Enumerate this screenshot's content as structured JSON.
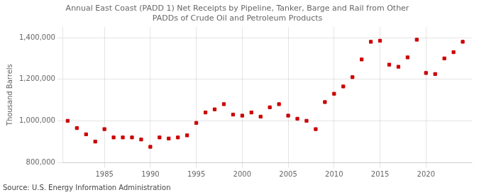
{
  "chart_data": {
    "type": "scatter",
    "title": "Annual East Coast (PADD 1) Net Receipts by Pipeline, Tanker, Barge and Rail from Other\nPADDs of Crude Oil and Petroleum Products",
    "ylabel": "Thousand Barrels",
    "source": "Source: U.S. Energy Information Administration",
    "x": [
      1981,
      1982,
      1983,
      1984,
      1985,
      1986,
      1987,
      1988,
      1989,
      1990,
      1991,
      1992,
      1993,
      1994,
      1995,
      1996,
      1997,
      1998,
      1999,
      2000,
      2001,
      2002,
      2003,
      2004,
      2005,
      2006,
      2007,
      2008,
      2009,
      2010,
      2011,
      2012,
      2013,
      2014,
      2015,
      2016,
      2017,
      2018,
      2019,
      2020,
      2021,
      2022,
      2023,
      2024
    ],
    "values": [
      1000000,
      965000,
      935000,
      900000,
      960000,
      920000,
      920000,
      920000,
      910000,
      875000,
      920000,
      915000,
      920000,
      930000,
      990000,
      1040000,
      1055000,
      1080000,
      1030000,
      1025000,
      1040000,
      1020000,
      1065000,
      1080000,
      1025000,
      1010000,
      1000000,
      960000,
      1090000,
      1130000,
      1165000,
      1210000,
      1295000,
      1380000,
      1385000,
      1270000,
      1260000,
      1305000,
      1390000,
      1230000,
      1225000,
      1300000,
      1330000,
      1380000
    ],
    "color": "#cc0000",
    "marker": "square",
    "xlim": [
      1980.5,
      2025
    ],
    "xticks": [
      1985,
      1990,
      1995,
      2000,
      2005,
      2010,
      2015,
      2020
    ],
    "ylim": [
      800000,
      1450000
    ],
    "yticks": [
      {
        "value": 800000,
        "label": "800,000"
      },
      {
        "value": 1000000,
        "label": "1,000,000"
      },
      {
        "value": 1200000,
        "label": "1,200,000"
      },
      {
        "value": 1400000,
        "label": "1,400,000"
      }
    ],
    "grid": true
  }
}
